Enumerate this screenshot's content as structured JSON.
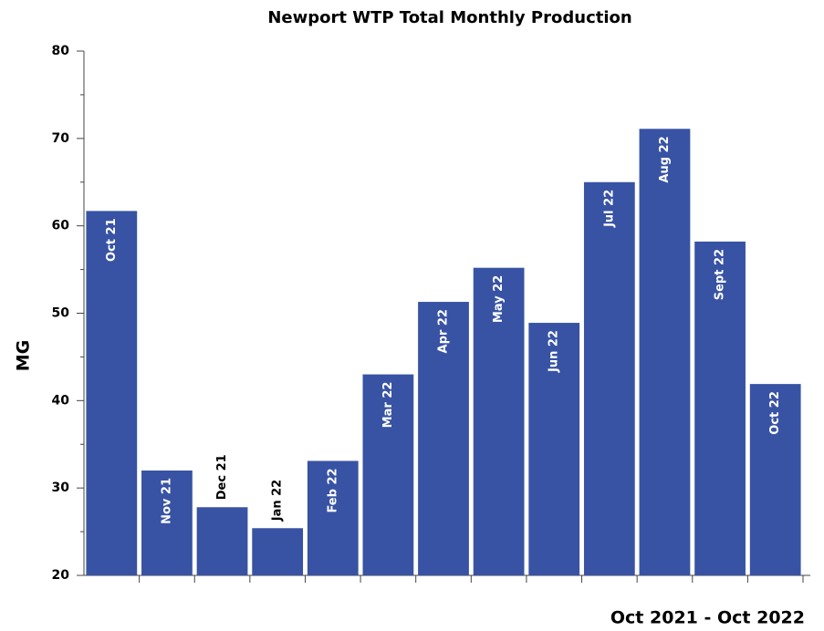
{
  "chart_data": {
    "type": "bar",
    "title": "Newport WTP Total Monthly Production",
    "y_label": "MG",
    "x_label": "Oct 2021 - Oct 2022",
    "categories": [
      "Oct 21",
      "Nov 21",
      "Dec 21",
      "Jan 22",
      "Feb 22",
      "Mar 22",
      "Apr 22",
      "May 22",
      "Jun 22",
      "Jul 22",
      "Aug 22",
      "Sept 22",
      "Oct 22"
    ],
    "values": [
      61.7,
      32.0,
      27.8,
      25.4,
      33.1,
      43.0,
      51.3,
      55.2,
      48.9,
      65.0,
      71.1,
      58.2,
      41.9
    ],
    "color": "#3853a4",
    "ylim": [
      20,
      80
    ],
    "yticks": [
      20,
      30,
      40,
      50,
      60,
      70,
      80
    ],
    "yminorticks": [
      25,
      35,
      45,
      55,
      65,
      75
    ]
  }
}
